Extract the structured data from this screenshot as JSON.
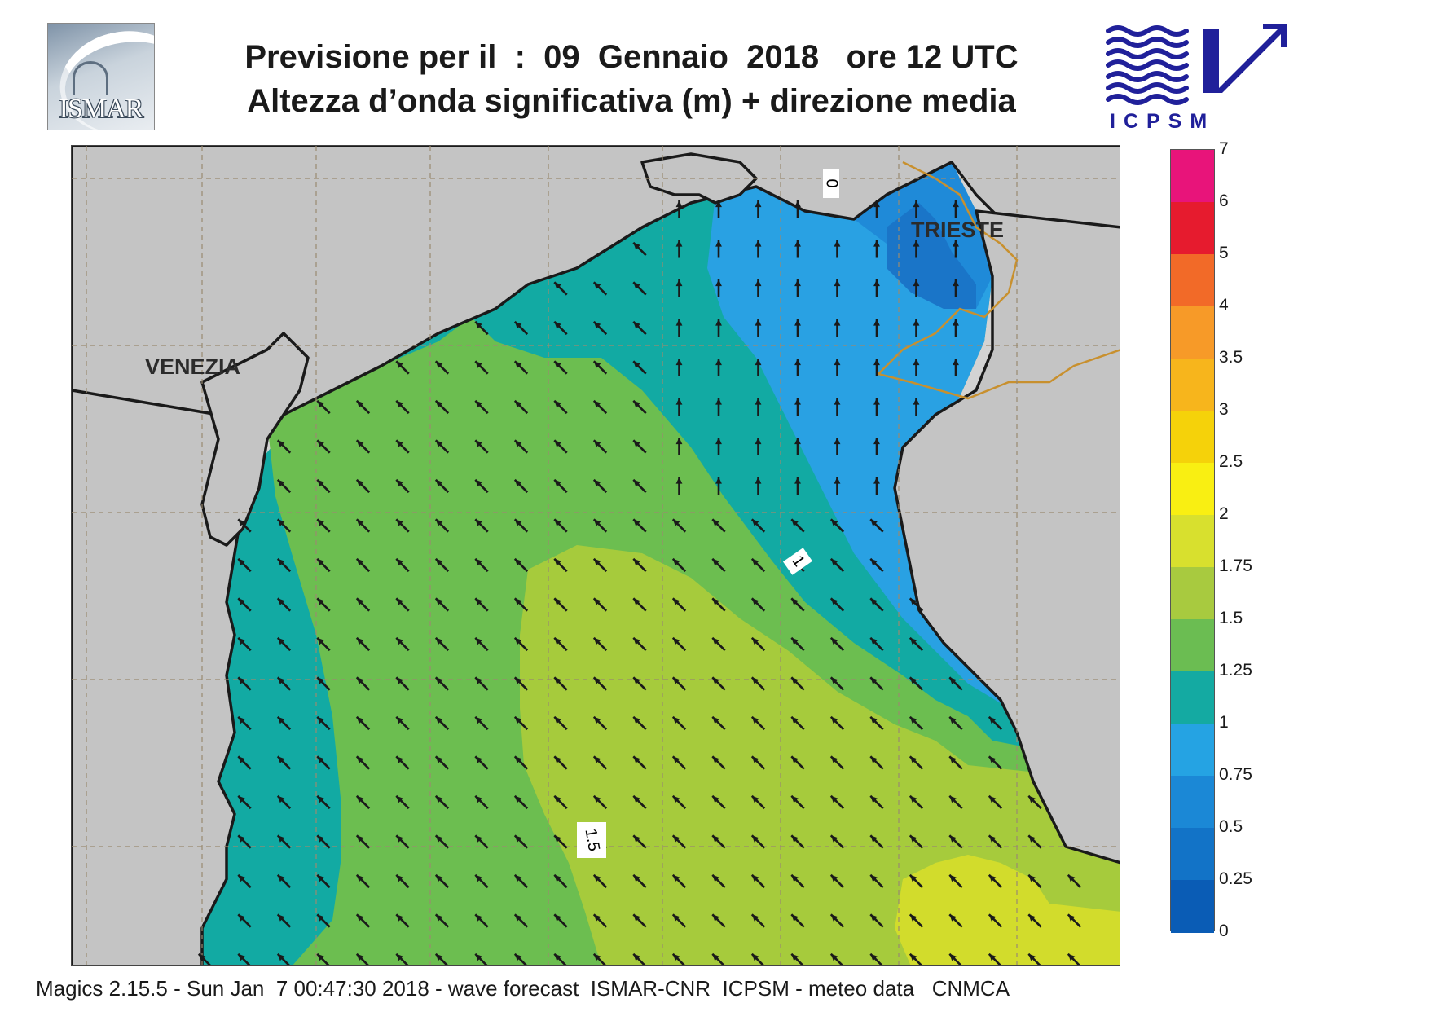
{
  "header": {
    "title_line1": "Previsione per il  :  09  Gennaio  2018   ore 12 UTC",
    "title_line2": "Altezza d’onda significativa (m) + direzione media"
  },
  "logos": {
    "left": "ISMAR",
    "right": "ICPSM"
  },
  "map": {
    "place_labels": [
      "VENEZIA",
      "TRIESTE"
    ],
    "contour_labels": [
      "0",
      "1",
      "1.5"
    ],
    "colors": {
      "background": "#d3d3d3",
      "land": "#c4c4c4",
      "grid_line": "#9a8a70",
      "coast": "#1a1a1a",
      "border": "#c8902e",
      "arrow": "#1a1a1a"
    },
    "arrow_direction": "north-west",
    "wave_height_zones": [
      {
        "range": "0-0.25",
        "color": "#0a5db8"
      },
      {
        "range": "0.25-0.5",
        "color": "#1a75c8"
      },
      {
        "range": "0.5-0.75",
        "color": "#1f8ad8"
      },
      {
        "range": "0.75-1",
        "color": "#29a1e3"
      },
      {
        "range": "1-1.25",
        "color": "#12aaa3"
      },
      {
        "range": "1.25-1.5",
        "color": "#6cbe50"
      },
      {
        "range": "1.5-1.75",
        "color": "#a6cb3c"
      },
      {
        "range": "1.75-2",
        "color": "#d2dc2c"
      }
    ]
  },
  "legend": {
    "labels": [
      "7",
      "6",
      "5",
      "4",
      "3.5",
      "3",
      "2.5",
      "2",
      "1.75",
      "1.5",
      "1.25",
      "1",
      "0.75",
      "0.5",
      "0.25",
      "0"
    ],
    "colors": [
      "#e8147a",
      "#e61b2e",
      "#f26a28",
      "#f79a28",
      "#f7b51c",
      "#f5d20a",
      "#f9ef12",
      "#d8e02e",
      "#a8ca3f",
      "#6bbd52",
      "#14aaa2",
      "#25a3e3",
      "#1b88d6",
      "#1273c7",
      "#0a5cb5"
    ]
  },
  "footer": {
    "text": "Magics 2.15.5 - Sun Jan  7 00:47:30 2018 - wave forecast  ISMAR-CNR  ICPSM - meteo data   CNMCA"
  }
}
